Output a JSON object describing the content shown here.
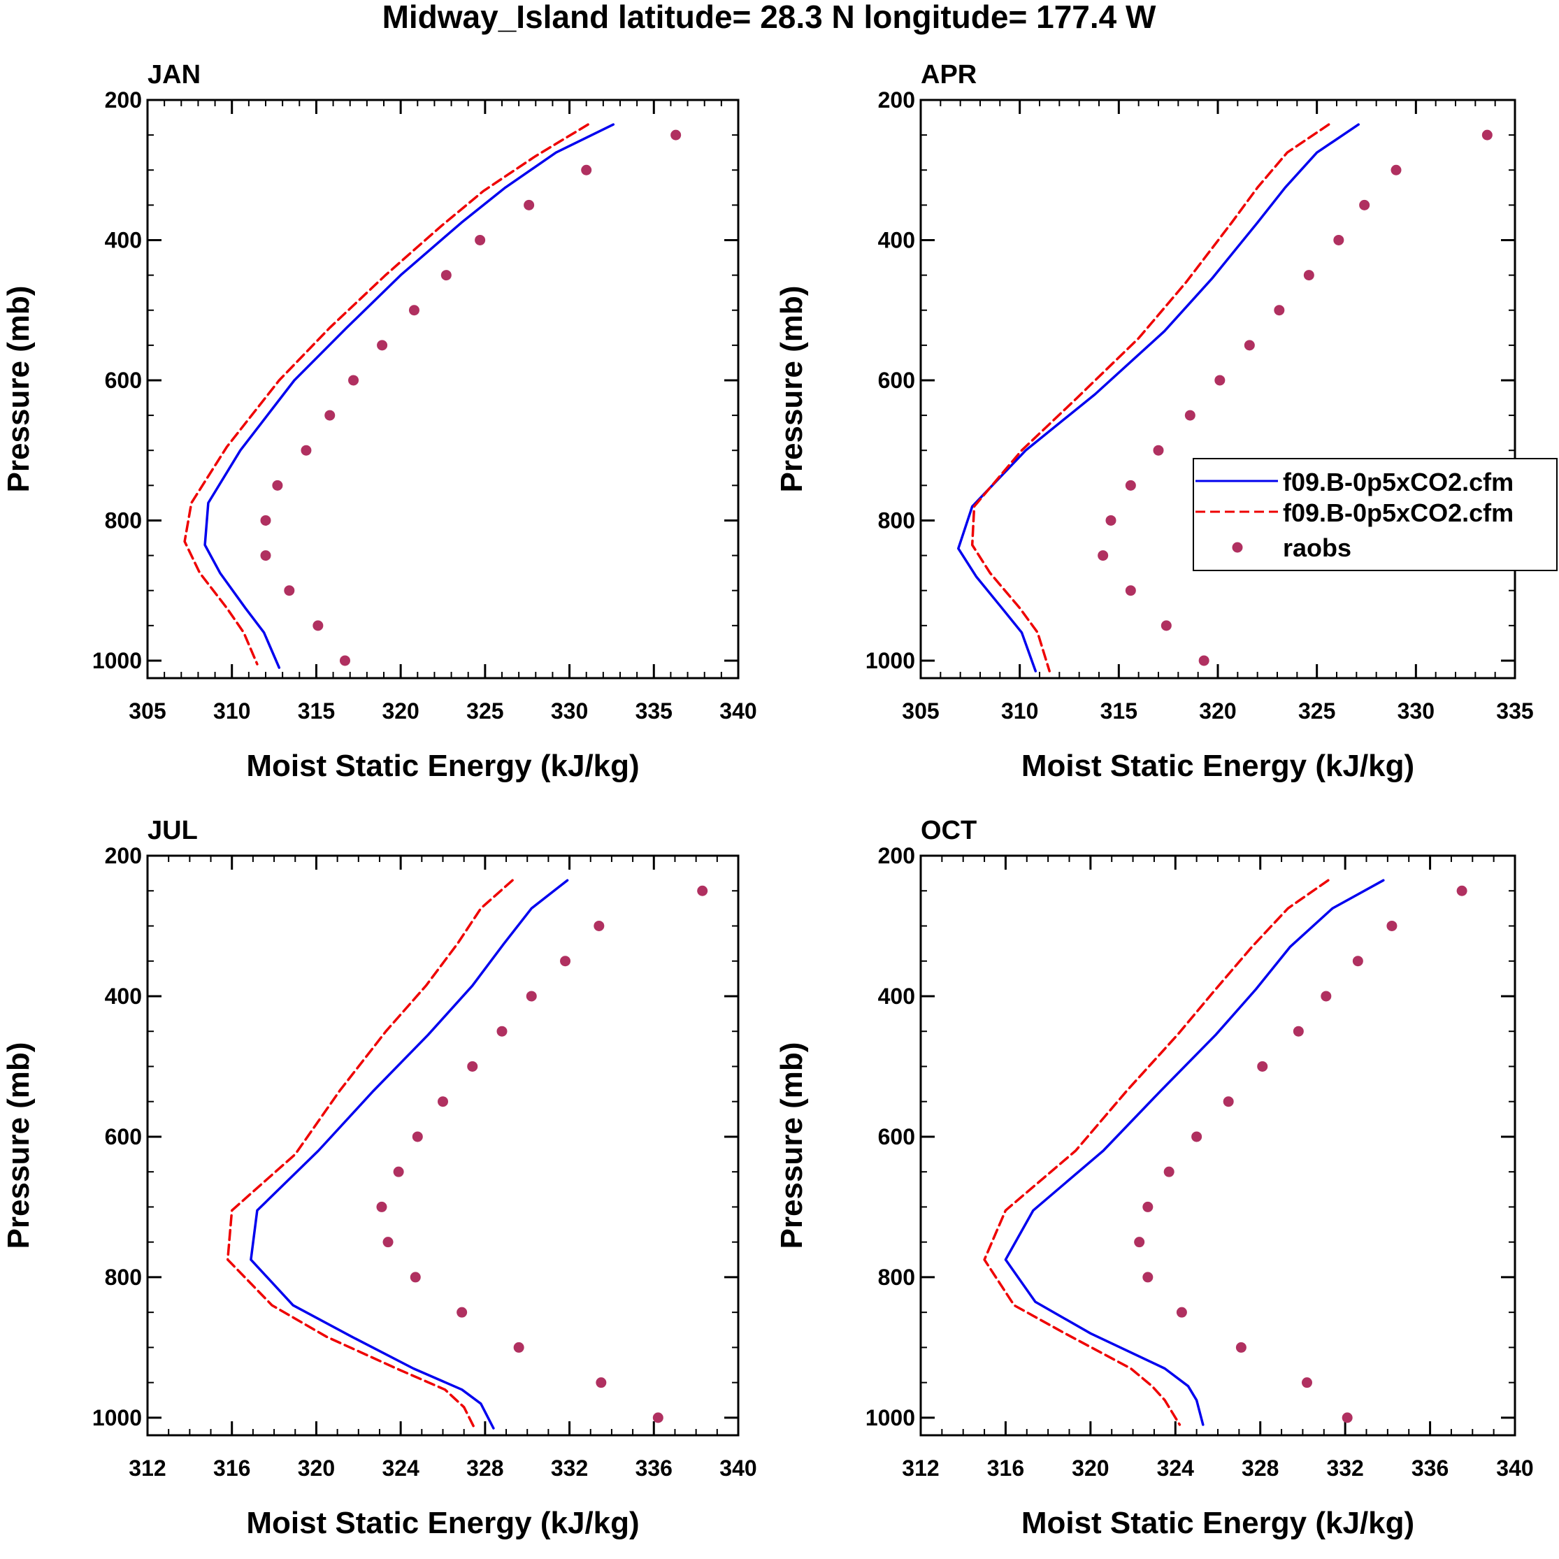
{
  "figure": {
    "title": "Midway_Island  latitude= 28.3 N longitude= 177.4 W"
  },
  "legend": {
    "entries": [
      {
        "label": "f09.B-0p5xCO2.cfm",
        "style": "solid",
        "color": "#0000ee"
      },
      {
        "label": "f09.B-0p5xCO2.cfm",
        "style": "dashed",
        "color": "#ee0000"
      },
      {
        "label": "raobs",
        "style": "marker",
        "color": "#b03060"
      }
    ]
  },
  "chart_data": [
    {
      "type": "line",
      "title": "JAN",
      "xlabel": "Moist Static Energy (kJ/kg)",
      "ylabel": "Pressure (mb)",
      "xlim": [
        305,
        340
      ],
      "xticks": [
        305,
        310,
        315,
        320,
        325,
        330,
        335,
        340
      ],
      "xminor": 1,
      "ylim": [
        200,
        1025
      ],
      "yticks": [
        200,
        400,
        600,
        800,
        1000
      ],
      "yminor": 50,
      "series": [
        {
          "name": "f09.B-0p5xCO2.cfm",
          "style": "solid",
          "color": "#0000ee",
          "pressure": [
            235,
            275,
            325,
            375,
            450,
            525,
            600,
            700,
            775,
            835,
            875,
            925,
            960,
            1010
          ],
          "values": [
            332.6,
            329.2,
            326.2,
            323.6,
            320.0,
            316.8,
            313.7,
            310.5,
            308.6,
            308.4,
            309.3,
            310.8,
            311.9,
            312.8
          ]
        },
        {
          "name": "f09.B-0p5xCO2.cfm",
          "style": "dashed",
          "color": "#ee0000",
          "pressure": [
            235,
            280,
            330,
            380,
            450,
            525,
            600,
            695,
            775,
            830,
            875,
            925,
            960,
            1005
          ],
          "values": [
            331.1,
            328.0,
            324.9,
            322.4,
            319.1,
            315.8,
            312.8,
            309.7,
            307.6,
            307.2,
            308.1,
            309.7,
            310.7,
            311.5
          ]
        },
        {
          "name": "raobs",
          "style": "marker",
          "color": "#b03060",
          "pressure": [
            250,
            300,
            350,
            400,
            450,
            500,
            550,
            600,
            650,
            700,
            750,
            800,
            850,
            900,
            950,
            1000
          ],
          "values": [
            336.3,
            331.0,
            327.6,
            324.7,
            322.7,
            320.8,
            318.9,
            317.2,
            315.8,
            314.4,
            312.7,
            312.0,
            312.0,
            313.4,
            315.1,
            316.7
          ]
        }
      ]
    },
    {
      "type": "line",
      "title": "APR",
      "xlabel": "Moist Static Energy (kJ/kg)",
      "ylabel": "Pressure (mb)",
      "xlim": [
        305,
        335
      ],
      "xticks": [
        305,
        310,
        315,
        320,
        325,
        330,
        335
      ],
      "xminor": 1,
      "ylim": [
        200,
        1025
      ],
      "yticks": [
        200,
        400,
        600,
        800,
        1000
      ],
      "yminor": 50,
      "series": [
        {
          "name": "f09.B-0p5xCO2.cfm",
          "style": "solid",
          "color": "#0000ee",
          "pressure": [
            235,
            275,
            325,
            375,
            455,
            530,
            620,
            700,
            780,
            840,
            880,
            925,
            960,
            1015
          ],
          "values": [
            327.1,
            325.0,
            323.4,
            322.0,
            319.7,
            317.3,
            313.8,
            310.3,
            307.6,
            306.9,
            307.8,
            309.1,
            310.1,
            310.8
          ]
        },
        {
          "name": "f09.B-0p5xCO2.cfm",
          "style": "dashed",
          "color": "#ee0000",
          "pressure": [
            235,
            275,
            325,
            375,
            460,
            540,
            625,
            700,
            780,
            835,
            875,
            925,
            960,
            1015
          ],
          "values": [
            325.6,
            323.5,
            322.0,
            320.7,
            318.4,
            316.0,
            312.9,
            310.1,
            307.7,
            307.6,
            308.5,
            310.0,
            310.9,
            311.5
          ]
        },
        {
          "name": "raobs",
          "style": "marker",
          "color": "#b03060",
          "pressure": [
            250,
            300,
            350,
            400,
            450,
            500,
            550,
            600,
            650,
            700,
            750,
            800,
            850,
            900,
            950,
            1000
          ],
          "values": [
            333.6,
            329.0,
            327.4,
            326.1,
            324.6,
            323.1,
            321.6,
            320.1,
            318.6,
            317.0,
            315.6,
            314.6,
            314.2,
            315.6,
            317.4,
            319.3
          ]
        }
      ]
    },
    {
      "type": "line",
      "title": "JUL",
      "xlabel": "Moist Static Energy (kJ/kg)",
      "ylabel": "Pressure (mb)",
      "xlim": [
        312,
        340
      ],
      "xticks": [
        312,
        316,
        320,
        324,
        328,
        332,
        336,
        340
      ],
      "xminor": 1,
      "ylim": [
        200,
        1025
      ],
      "yticks": [
        200,
        400,
        600,
        800,
        1000
      ],
      "yminor": 50,
      "series": [
        {
          "name": "f09.B-0p5xCO2.cfm",
          "style": "solid",
          "color": "#0000ee",
          "pressure": [
            235,
            275,
            325,
            385,
            455,
            535,
            620,
            705,
            775,
            840,
            885,
            930,
            960,
            980,
            1015
          ],
          "values": [
            331.9,
            330.2,
            328.9,
            327.4,
            325.3,
            322.7,
            320.1,
            317.2,
            316.9,
            318.9,
            321.7,
            324.6,
            326.9,
            327.8,
            328.4
          ]
        },
        {
          "name": "f09.B-0p5xCO2.cfm",
          "style": "dashed",
          "color": "#ee0000",
          "pressure": [
            235,
            275,
            325,
            385,
            450,
            535,
            625,
            705,
            775,
            840,
            885,
            930,
            960,
            985,
            1015
          ],
          "values": [
            329.3,
            327.8,
            326.7,
            325.2,
            323.3,
            321.1,
            319.0,
            316.0,
            315.8,
            317.9,
            320.5,
            323.8,
            326.1,
            327.0,
            327.5
          ]
        },
        {
          "name": "raobs",
          "style": "marker",
          "color": "#b03060",
          "pressure": [
            250,
            300,
            350,
            400,
            450,
            500,
            550,
            600,
            650,
            700,
            750,
            800,
            850,
            900,
            950,
            1000
          ],
          "values": [
            338.3,
            333.4,
            331.8,
            330.2,
            328.8,
            327.4,
            326.0,
            324.8,
            323.9,
            323.1,
            323.4,
            324.7,
            326.9,
            329.6,
            333.5,
            336.2
          ]
        }
      ]
    },
    {
      "type": "line",
      "title": "OCT",
      "xlabel": "Moist Static Energy (kJ/kg)",
      "ylabel": "Pressure (mb)",
      "xlim": [
        312,
        340
      ],
      "xticks": [
        312,
        316,
        320,
        324,
        328,
        332,
        336,
        340
      ],
      "xminor": 1,
      "ylim": [
        200,
        1025
      ],
      "yticks": [
        200,
        400,
        600,
        800,
        1000
      ],
      "yminor": 50,
      "series": [
        {
          "name": "f09.B-0p5xCO2.cfm",
          "style": "solid",
          "color": "#0000ee",
          "pressure": [
            235,
            275,
            330,
            390,
            455,
            535,
            620,
            705,
            775,
            835,
            880,
            930,
            955,
            975,
            1010
          ],
          "values": [
            333.8,
            331.4,
            329.4,
            327.8,
            325.9,
            323.3,
            320.6,
            317.3,
            316.0,
            317.4,
            320.0,
            323.5,
            324.6,
            325.0,
            325.3
          ]
        },
        {
          "name": "f09.B-0p5xCO2.cfm",
          "style": "dashed",
          "color": "#ee0000",
          "pressure": [
            235,
            275,
            330,
            390,
            455,
            535,
            620,
            705,
            775,
            840,
            880,
            930,
            955,
            975,
            1010
          ],
          "values": [
            331.2,
            329.3,
            327.6,
            325.9,
            324.1,
            321.7,
            319.3,
            316.0,
            315.0,
            316.4,
            318.8,
            321.9,
            322.9,
            323.5,
            324.2
          ]
        },
        {
          "name": "raobs",
          "style": "marker",
          "color": "#b03060",
          "pressure": [
            250,
            300,
            350,
            400,
            450,
            500,
            550,
            600,
            650,
            700,
            750,
            800,
            850,
            900,
            950,
            1000
          ],
          "values": [
            337.5,
            334.2,
            332.6,
            331.1,
            329.8,
            328.1,
            326.5,
            325.0,
            323.7,
            322.7,
            322.3,
            322.7,
            324.3,
            327.1,
            330.2,
            332.1
          ]
        }
      ]
    }
  ]
}
